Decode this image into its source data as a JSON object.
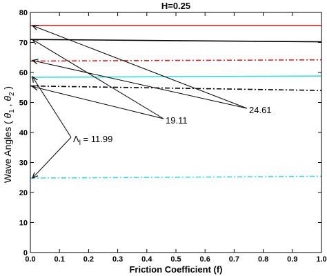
{
  "chart_data": {
    "type": "line",
    "title": "H=0.25",
    "xlabel": "Friction Coefficient (f)",
    "ylabel_prefix": "Wave Angles",
    "ylabel_sym1": "θ",
    "ylabel_sub1": "1",
    "ylabel_sep": ",",
    "ylabel_sym2": "θ",
    "ylabel_sub2": "2",
    "xlim": [
      0,
      1
    ],
    "ylim": [
      0,
      80
    ],
    "xticks": [
      "0.0",
      "0.1",
      "0.2",
      "0.3",
      "0.4",
      "0.5",
      "0.6",
      "0.7",
      "0.8",
      "0.9",
      "1.0"
    ],
    "yticks": [
      "0",
      "10",
      "20",
      "30",
      "40",
      "50",
      "60",
      "70",
      "80"
    ],
    "grid": false,
    "series": [
      {
        "color": "#e02020",
        "style": "solid",
        "x": [
          0,
          1
        ],
        "y": [
          75.6,
          75.6
        ]
      },
      {
        "color": "#000000",
        "style": "solid",
        "x": [
          0,
          1
        ],
        "y": [
          71.0,
          70.2
        ]
      },
      {
        "color": "#e02020",
        "style": "dashdot",
        "x": [
          0,
          1
        ],
        "y": [
          63.8,
          64.2
        ]
      },
      {
        "color": "#33dddd",
        "style": "solid",
        "x": [
          0,
          1
        ],
        "y": [
          58.4,
          58.8
        ]
      },
      {
        "color": "#000000",
        "style": "dashdot",
        "x": [
          0,
          1
        ],
        "y": [
          55.5,
          54.0
        ]
      },
      {
        "color": "#33dddd",
        "style": "dashdot",
        "x": [
          0,
          1
        ],
        "y": [
          24.8,
          25.4
        ]
      }
    ],
    "annotations": [
      {
        "text": "24.61",
        "arrows": [
          [
            0.0,
            75.6
          ],
          [
            0.0,
            64.0
          ]
        ]
      },
      {
        "text": "19.11",
        "arrows": [
          [
            0.0,
            71.0
          ],
          [
            0.0,
            55.3
          ]
        ]
      },
      {
        "text_sym": "Λ",
        "text_sub": "l",
        "text_value": "= 11.99",
        "arrows": [
          [
            0.0,
            58.6
          ],
          [
            0.0,
            24.8
          ]
        ]
      }
    ]
  }
}
